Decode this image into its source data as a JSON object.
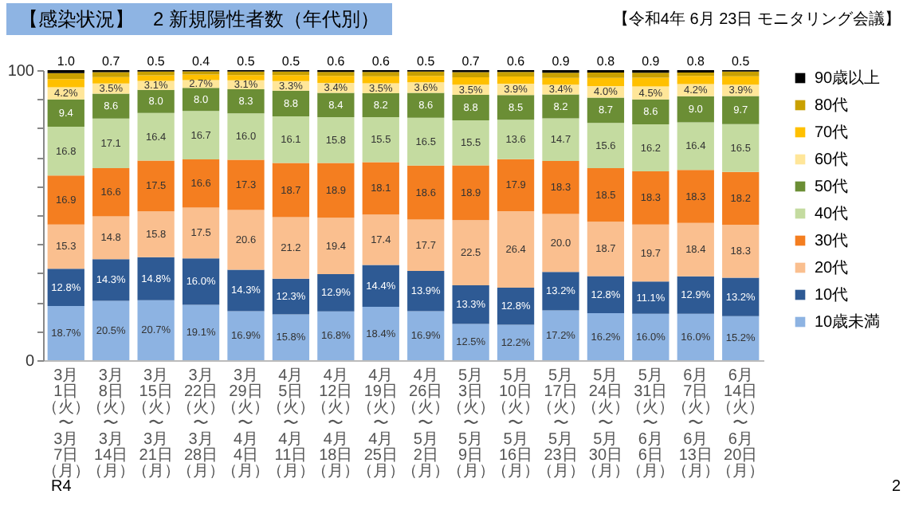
{
  "chart_data": {
    "type": "bar",
    "stacked": true,
    "title": "【感染状況】　2 新規陽性者数（年代別）",
    "annotations": [
      "【令和4年 6月 23日 モニタリング会議】",
      "R4",
      "2"
    ],
    "categories": [
      "3月1日（火）〜3月7日（月）",
      "3月8日（火）〜3月14日（月）",
      "3月15日（火）〜3月21日（月）",
      "3月22日（火）〜3月28日（月）",
      "3月29日（火）〜4月4日（月）",
      "4月5日（火）〜4月11日（月）",
      "4月12日（火）〜4月18日（月）",
      "4月19日（火）〜4月25日（月）",
      "4月26日（火）〜5月2日（月）",
      "5月3日（火）〜5月9日（月）",
      "5月10日（火）〜5月16日（月）",
      "5月17日（火）〜5月23日（月）",
      "5月24日（火）〜5月30日（月）",
      "5月31日（火）〜6月6日（月）",
      "6月7日（火）〜6月13日（月）",
      "6月14日（火）〜6月20日（月）"
    ],
    "ylim": [
      0,
      100
    ],
    "yticks": [
      0,
      {
        "value": 10,
        "label": null
      },
      {
        "value": 20,
        "label": null
      },
      {
        "value": 30,
        "label": null
      },
      {
        "value": 40,
        "label": null
      },
      {
        "value": 50,
        "label": null
      },
      {
        "value": 60,
        "label": null
      },
      {
        "value": 70,
        "label": null
      },
      {
        "value": 80,
        "label": null
      },
      {
        "value": 90,
        "label": null
      },
      100
    ],
    "legend": "right",
    "series": [
      {
        "name": "10歳未満",
        "color": "#8db3e2",
        "values": [
          18.7,
          20.5,
          20.7,
          19.1,
          16.9,
          15.8,
          16.8,
          18.4,
          16.9,
          12.5,
          12.2,
          17.2,
          16.2,
          16.0,
          16.0,
          15.2
        ],
        "value_labels": [
          "18.7%",
          "20.5%",
          "20.7%",
          "19.1%",
          "16.9%",
          "15.8%",
          "16.8%",
          "18.4%",
          "16.9%",
          "12.5%",
          "12.2%",
          "17.2%",
          "16.2%",
          "16.0%",
          "16.0%",
          "15.2%"
        ]
      },
      {
        "name": "10代",
        "color": "#2e5a94",
        "values": [
          12.8,
          14.3,
          14.8,
          16.0,
          14.3,
          12.3,
          12.9,
          14.4,
          13.9,
          13.3,
          12.8,
          13.2,
          12.8,
          11.1,
          12.9,
          13.2
        ],
        "value_labels": [
          "12.8%",
          "14.3%",
          "14.8%",
          "16.0%",
          "14.3%",
          "12.3%",
          "12.9%",
          "14.4%",
          "13.9%",
          "13.3%",
          "12.8%",
          "13.2%",
          "12.8%",
          "11.1%",
          "12.9%",
          "13.2%"
        ]
      },
      {
        "name": "20代",
        "color": "#fabf8f",
        "values": [
          15.3,
          14.8,
          15.8,
          17.5,
          20.6,
          21.2,
          19.4,
          17.4,
          17.7,
          22.5,
          26.4,
          20.0,
          18.7,
          19.7,
          18.4,
          18.3
        ],
        "value_labels": [
          "15.3",
          "14.8",
          "15.8",
          "17.5",
          "20.6",
          "21.2",
          "19.4",
          "17.4",
          "17.7",
          "22.5",
          "26.4",
          "20.0",
          "18.7",
          "19.7",
          "18.4",
          "18.3"
        ]
      },
      {
        "name": "30代",
        "color": "#f47e20",
        "values": [
          16.9,
          16.6,
          17.5,
          16.6,
          17.3,
          18.7,
          18.9,
          18.1,
          18.6,
          18.9,
          17.9,
          18.3,
          18.5,
          18.3,
          18.3,
          18.2
        ],
        "value_labels": [
          "16.9",
          "16.6",
          "17.5",
          "16.6",
          "17.3",
          "18.7",
          "18.9",
          "18.1",
          "18.6",
          "18.9",
          "17.9",
          "18.3",
          "18.5",
          "18.3",
          "18.3",
          "18.2"
        ]
      },
      {
        "name": "40代",
        "color": "#c4dba0",
        "values": [
          16.8,
          17.1,
          16.4,
          16.7,
          16.0,
          16.1,
          15.8,
          15.5,
          16.5,
          15.5,
          13.6,
          14.7,
          15.6,
          16.2,
          16.4,
          16.5
        ],
        "value_labels": [
          "16.8",
          "17.1",
          "16.4",
          "16.7",
          "16.0",
          "16.1",
          "15.8",
          "15.5",
          "16.5",
          "15.5",
          "13.6",
          "14.7",
          "15.6",
          "16.2",
          "16.4",
          "16.5"
        ]
      },
      {
        "name": "50代",
        "color": "#6b8e35",
        "values": [
          9.4,
          8.6,
          8.0,
          8.0,
          8.3,
          8.8,
          8.4,
          8.2,
          8.6,
          8.8,
          8.5,
          8.2,
          8.7,
          8.6,
          9.0,
          9.7
        ],
        "value_labels": [
          "9.4",
          "8.6",
          "8.0",
          "8.0",
          "8.3",
          "8.8",
          "8.4",
          "8.2",
          "8.6",
          "8.8",
          "8.5",
          "8.2",
          "8.7",
          "8.6",
          "9.0",
          "9.7"
        ]
      },
      {
        "name": "60代",
        "color": "#ffe699",
        "values": [
          4.2,
          3.5,
          3.1,
          2.7,
          3.1,
          3.3,
          3.4,
          3.5,
          3.6,
          3.5,
          3.9,
          3.4,
          4.0,
          4.5,
          4.2,
          3.9
        ],
        "value_labels": [
          "4.2%",
          "3.5%",
          "3.1%",
          "2.7%",
          "3.1%",
          "3.3%",
          "3.4%",
          "3.5%",
          "3.6%",
          "3.5%",
          "3.9%",
          "3.4%",
          "4.0%",
          "4.5%",
          "4.2%",
          "3.9%"
        ]
      },
      {
        "name": "70代",
        "color": "#ffc000",
        "values": [
          2.8,
          2.2,
          1.9,
          1.9,
          1.8,
          2.1,
          2.4,
          2.4,
          2.2,
          2.5,
          2.5,
          2.3,
          2.8,
          3.0,
          2.8,
          2.9
        ]
      },
      {
        "name": "80代",
        "color": "#c9a000",
        "values": [
          2.1,
          1.7,
          1.3,
          1.1,
          1.2,
          1.2,
          1.4,
          1.5,
          1.5,
          1.8,
          1.6,
          1.8,
          1.9,
          1.7,
          1.2,
          1.6
        ]
      },
      {
        "name": "90歳以上",
        "color": "#000000",
        "values": [
          1.0,
          0.7,
          0.5,
          0.4,
          0.5,
          0.5,
          0.6,
          0.6,
          0.5,
          0.7,
          0.6,
          0.9,
          0.8,
          0.9,
          0.8,
          0.5
        ],
        "value_labels": [
          "1.0",
          "0.7",
          "0.5",
          "0.4",
          "0.5",
          "0.5",
          "0.6",
          "0.6",
          "0.5",
          "0.7",
          "0.6",
          "0.9",
          "0.8",
          "0.9",
          "0.8",
          "0.5"
        ]
      }
    ]
  }
}
